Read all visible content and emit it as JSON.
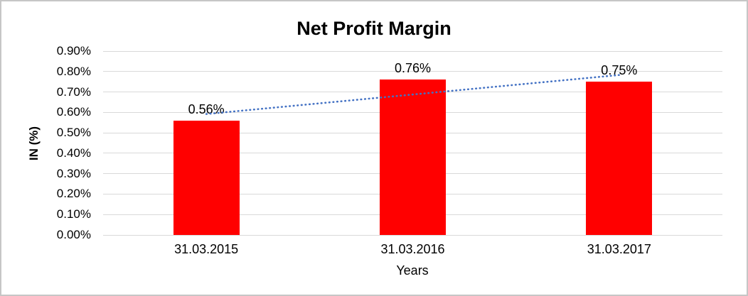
{
  "frame": {
    "background": "#FFFFFF",
    "border_color": "#C6C6C6"
  },
  "chart_data": {
    "type": "bar",
    "title": "Net Profit Margin",
    "xlabel": "Years",
    "ylabel": "IN (%)",
    "categories": [
      "31.03.2015",
      "31.03.2016",
      "31.03.2017"
    ],
    "values": [
      0.56,
      0.76,
      0.75
    ],
    "value_labels": [
      "0.56%",
      "0.76%",
      "0.75%"
    ],
    "ylim": [
      0,
      0.9
    ],
    "y_tick_step": 0.1,
    "y_tick_labels_top_to_bottom": [
      "0.90%",
      "0.80%",
      "0.70%",
      "0.60%",
      "0.50%",
      "0.40%",
      "0.30%",
      "0.20%",
      "0.10%",
      "0.00%"
    ],
    "grid": true,
    "legend": false,
    "bar_color": "#FF0000",
    "gridline_color": "#D9D9D9",
    "text_color": "#000000",
    "trendline": {
      "type": "linear",
      "style": "dotted",
      "color": "#4472C4",
      "start_value": 0.592,
      "end_value": 0.783
    }
  }
}
